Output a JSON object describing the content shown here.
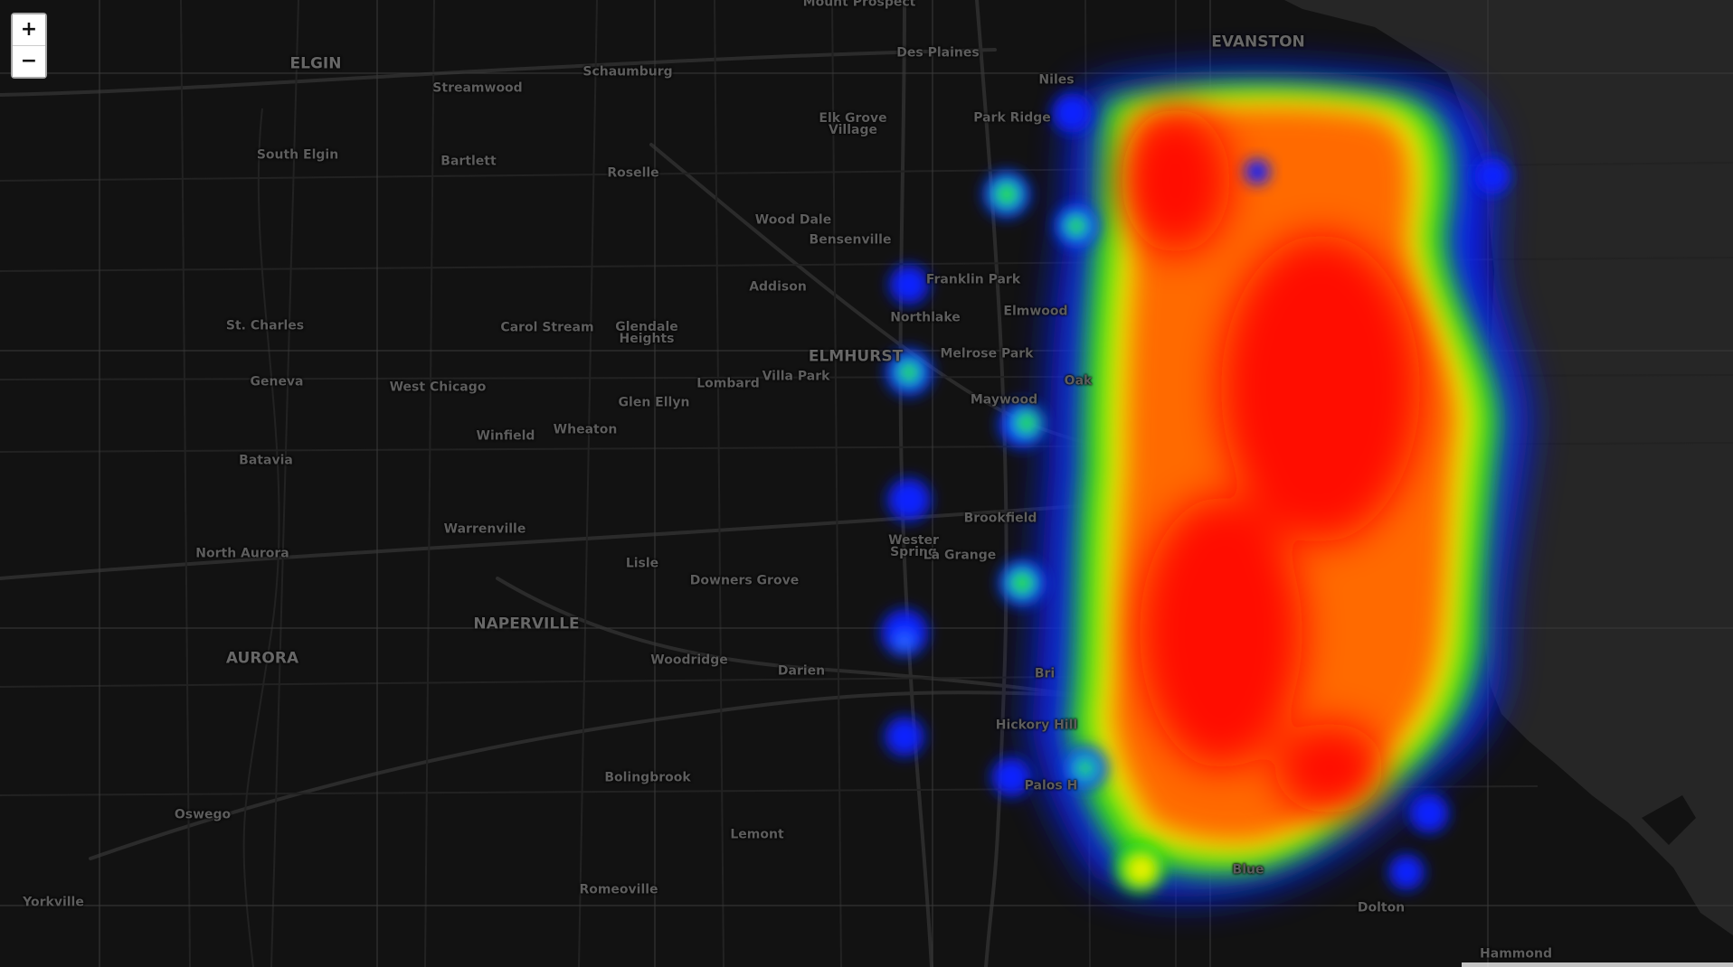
{
  "map": {
    "basemap_style": "dark",
    "background_color": "#0e0e0e",
    "land_color": "#141414",
    "water_color": "#262626",
    "road_color": "#2e2e2e",
    "label_color": "#5d5d5d",
    "heatmap_gradient": [
      "#0000ff",
      "#00ff00",
      "#ffff00",
      "#ff8000",
      "#ff0000"
    ]
  },
  "zoom_controls": {
    "zoom_in_label": "+",
    "zoom_out_label": "−"
  },
  "places": [
    {
      "id": "mount-prospect",
      "name": "Mount Prospect"
    },
    {
      "id": "des-plaines",
      "name": "Des Plaines"
    },
    {
      "id": "evanston",
      "name": "EVANSTON"
    },
    {
      "id": "elgin",
      "name": "ELGIN"
    },
    {
      "id": "streamwood",
      "name": "Streamwood"
    },
    {
      "id": "schaumburg",
      "name": "Schaumburg"
    },
    {
      "id": "niles",
      "name": "Niles"
    },
    {
      "id": "elk-grove-village",
      "name": "Elk Grove\nVillage"
    },
    {
      "id": "park-ridge",
      "name": "Park Ridge"
    },
    {
      "id": "south-elgin",
      "name": "South Elgin"
    },
    {
      "id": "bartlett",
      "name": "Bartlett"
    },
    {
      "id": "roselle",
      "name": "Roselle"
    },
    {
      "id": "wood-dale",
      "name": "Wood Dale"
    },
    {
      "id": "bensenville",
      "name": "Bensenville"
    },
    {
      "id": "franklin-park",
      "name": "Franklin Park"
    },
    {
      "id": "addison",
      "name": "Addison"
    },
    {
      "id": "northlake",
      "name": "Northlake"
    },
    {
      "id": "elmwood-park",
      "name": "Elmwood"
    },
    {
      "id": "st-charles",
      "name": "St. Charles"
    },
    {
      "id": "carol-stream",
      "name": "Carol Stream"
    },
    {
      "id": "glendale-heights",
      "name": "Glendale\nHeights"
    },
    {
      "id": "elmhurst",
      "name": "ELMHURST"
    },
    {
      "id": "melrose-park",
      "name": "Melrose Park"
    },
    {
      "id": "geneva",
      "name": "Geneva"
    },
    {
      "id": "west-chicago",
      "name": "West Chicago"
    },
    {
      "id": "lombard",
      "name": "Lombard"
    },
    {
      "id": "villa-park",
      "name": "Villa Park"
    },
    {
      "id": "oak-park",
      "name": "Oak"
    },
    {
      "id": "maywood",
      "name": "Maywood"
    },
    {
      "id": "glen-ellyn",
      "name": "Glen Ellyn"
    },
    {
      "id": "winfield",
      "name": "Winfield"
    },
    {
      "id": "wheaton",
      "name": "Wheaton"
    },
    {
      "id": "batavia",
      "name": "Batavia"
    },
    {
      "id": "brookfield",
      "name": "Brookfield"
    },
    {
      "id": "warrenville",
      "name": "Warrenville"
    },
    {
      "id": "western-springs",
      "name": "Wester\nSpring"
    },
    {
      "id": "la-grange",
      "name": "La Grange"
    },
    {
      "id": "north-aurora",
      "name": "North Aurora"
    },
    {
      "id": "lisle",
      "name": "Lisle"
    },
    {
      "id": "downers-grove",
      "name": "Downers Grove"
    },
    {
      "id": "naperville",
      "name": "NAPERVILLE"
    },
    {
      "id": "aurora",
      "name": "AURORA"
    },
    {
      "id": "woodridge",
      "name": "Woodridge"
    },
    {
      "id": "darien",
      "name": "Darien"
    },
    {
      "id": "bridgeview",
      "name": "Bri"
    },
    {
      "id": "hickory-hills",
      "name": "Hickory Hill"
    },
    {
      "id": "bolingbrook",
      "name": "Bolingbrook"
    },
    {
      "id": "palos-hills",
      "name": "Palos H"
    },
    {
      "id": "oswego",
      "name": "Oswego"
    },
    {
      "id": "lemont",
      "name": "Lemont"
    },
    {
      "id": "blue-island",
      "name": "Blue"
    },
    {
      "id": "romeoville",
      "name": "Romeoville"
    },
    {
      "id": "dolton",
      "name": "Dolton"
    },
    {
      "id": "yorkville",
      "name": "Yorkville"
    },
    {
      "id": "hammond",
      "name": "Hammond"
    }
  ]
}
